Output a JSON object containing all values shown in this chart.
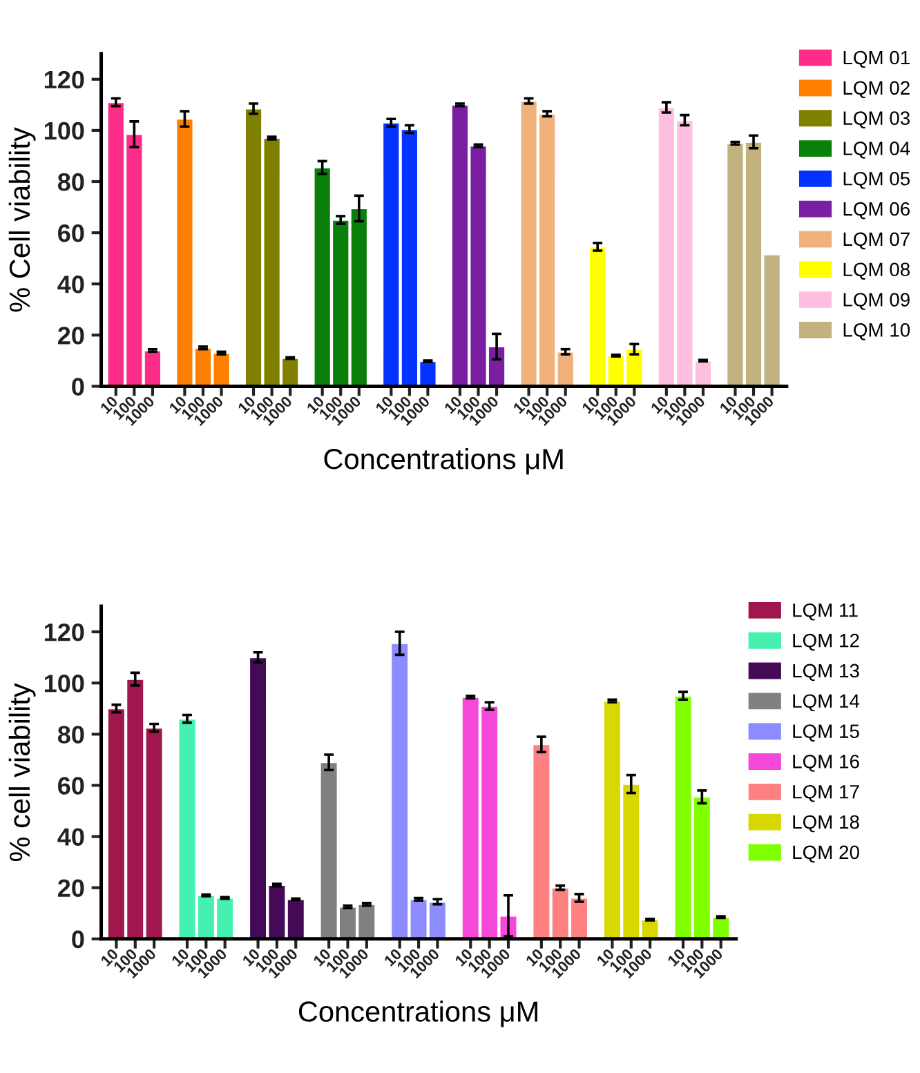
{
  "chart_data": [
    {
      "type": "bar",
      "xlabel": "Concentrations μM",
      "ylabel": "% Cell viability",
      "ylim": [
        0,
        130
      ],
      "yticks": [
        0,
        20,
        40,
        60,
        80,
        100,
        120
      ],
      "grid": false,
      "legend": "top right",
      "categories": [
        "10",
        "100",
        "1000",
        "10",
        "100",
        "1000",
        "10",
        "100",
        "1000",
        "10",
        "100",
        "1000",
        "10",
        "100",
        "1000",
        "10",
        "100",
        "1000",
        "10",
        "100",
        "1000",
        "10",
        "100",
        "1000",
        "10",
        "100",
        "1000",
        "10",
        "100",
        "1000"
      ],
      "series": [
        {
          "name": "LQM 01",
          "color": "#ff2d8a",
          "values": [
            111,
            98.5,
            14,
            null,
            null,
            null,
            null,
            null,
            null,
            null,
            null,
            null,
            null,
            null,
            null,
            null,
            null,
            null,
            null,
            null,
            null,
            null,
            null,
            null,
            null,
            null,
            null,
            null,
            null,
            null
          ],
          "errors": [
            1.5,
            5,
            0.5,
            null,
            null,
            null,
            null,
            null,
            null,
            null,
            null,
            null,
            null,
            null,
            null,
            null,
            null,
            null,
            null,
            null,
            null,
            null,
            null,
            null,
            null,
            null,
            null,
            null,
            null,
            null
          ]
        },
        {
          "name": "LQM 02",
          "color": "#ff8000",
          "values": [
            null,
            null,
            null,
            104.5,
            15,
            13,
            null,
            null,
            null,
            null,
            null,
            null,
            null,
            null,
            null,
            null,
            null,
            null,
            null,
            null,
            null,
            null,
            null,
            null,
            null,
            null,
            null,
            null,
            null,
            null
          ],
          "errors": [
            null,
            null,
            null,
            3,
            0.5,
            0.5,
            null,
            null,
            null,
            null,
            null,
            null,
            null,
            null,
            null,
            null,
            null,
            null,
            null,
            null,
            null,
            null,
            null,
            null,
            null,
            null,
            null,
            null,
            null,
            null
          ]
        },
        {
          "name": "LQM 03",
          "color": "#808000",
          "values": [
            null,
            null,
            null,
            null,
            null,
            null,
            108.5,
            97,
            11,
            null,
            null,
            null,
            null,
            null,
            null,
            null,
            null,
            null,
            null,
            null,
            null,
            null,
            null,
            null,
            null,
            null,
            null,
            null,
            null,
            null
          ],
          "errors": [
            null,
            null,
            null,
            null,
            null,
            null,
            2,
            0.5,
            0.3,
            null,
            null,
            null,
            null,
            null,
            null,
            null,
            null,
            null,
            null,
            null,
            null,
            null,
            null,
            null,
            null,
            null,
            null,
            null,
            null,
            null
          ]
        },
        {
          "name": "LQM 04",
          "color": "#0a800a",
          "values": [
            null,
            null,
            null,
            null,
            null,
            null,
            null,
            null,
            null,
            85.5,
            65,
            69.5,
            null,
            null,
            null,
            null,
            null,
            null,
            null,
            null,
            null,
            null,
            null,
            null,
            null,
            null,
            null,
            null,
            null,
            null
          ],
          "errors": [
            null,
            null,
            null,
            null,
            null,
            null,
            null,
            null,
            null,
            2.5,
            1.5,
            5,
            null,
            null,
            null,
            null,
            null,
            null,
            null,
            null,
            null,
            null,
            null,
            null,
            null,
            null,
            null,
            null,
            null,
            null
          ]
        },
        {
          "name": "LQM 05",
          "color": "#0433ff",
          "values": [
            null,
            null,
            null,
            null,
            null,
            null,
            null,
            null,
            null,
            null,
            null,
            null,
            103,
            100.5,
            9.8,
            null,
            null,
            null,
            null,
            null,
            null,
            null,
            null,
            null,
            null,
            null,
            null,
            null,
            null,
            null
          ],
          "errors": [
            null,
            null,
            null,
            null,
            null,
            null,
            null,
            null,
            null,
            null,
            null,
            null,
            1.5,
            1.5,
            0.3,
            null,
            null,
            null,
            null,
            null,
            null,
            null,
            null,
            null,
            null,
            null,
            null,
            null,
            null,
            null
          ]
        },
        {
          "name": "LQM 06",
          "color": "#7a1fa2",
          "values": [
            null,
            null,
            null,
            null,
            null,
            null,
            null,
            null,
            null,
            null,
            null,
            null,
            null,
            null,
            null,
            110,
            94,
            15.5,
            null,
            null,
            null,
            null,
            null,
            null,
            null,
            null,
            null,
            null,
            null,
            null
          ],
          "errors": [
            null,
            null,
            null,
            null,
            null,
            null,
            null,
            null,
            null,
            null,
            null,
            null,
            null,
            null,
            null,
            0.5,
            0.5,
            5,
            null,
            null,
            null,
            null,
            null,
            null,
            null,
            null,
            null,
            null,
            null,
            null
          ]
        },
        {
          "name": "LQM 07",
          "color": "#f0b27a",
          "values": [
            null,
            null,
            null,
            null,
            null,
            null,
            null,
            null,
            null,
            null,
            null,
            null,
            null,
            null,
            null,
            null,
            null,
            null,
            111.5,
            106.5,
            13.5,
            null,
            null,
            null,
            null,
            null,
            null,
            null,
            null,
            null
          ],
          "errors": [
            null,
            null,
            null,
            null,
            null,
            null,
            null,
            null,
            null,
            null,
            null,
            null,
            null,
            null,
            null,
            null,
            null,
            null,
            1,
            1,
            1,
            null,
            null,
            null,
            null,
            null,
            null,
            null,
            null,
            null
          ]
        },
        {
          "name": "LQM 08",
          "color": "#ffff00",
          "values": [
            null,
            null,
            null,
            null,
            null,
            null,
            null,
            null,
            null,
            null,
            null,
            null,
            null,
            null,
            null,
            null,
            null,
            null,
            null,
            null,
            null,
            54.5,
            12,
            14.5,
            null,
            null,
            null,
            null,
            null,
            null
          ],
          "errors": [
            null,
            null,
            null,
            null,
            null,
            null,
            null,
            null,
            null,
            null,
            null,
            null,
            null,
            null,
            null,
            null,
            null,
            null,
            null,
            null,
            null,
            1.5,
            0.3,
            2,
            null,
            null,
            null,
            null,
            null,
            null
          ]
        },
        {
          "name": "LQM 09",
          "color": "#ffc0e0",
          "values": [
            null,
            null,
            null,
            null,
            null,
            null,
            null,
            null,
            null,
            null,
            null,
            null,
            null,
            null,
            null,
            null,
            null,
            null,
            null,
            null,
            null,
            null,
            null,
            null,
            109,
            104,
            10,
            null,
            null,
            null
          ],
          "errors": [
            null,
            null,
            null,
            null,
            null,
            null,
            null,
            null,
            null,
            null,
            null,
            null,
            null,
            null,
            null,
            null,
            null,
            null,
            null,
            null,
            null,
            null,
            null,
            null,
            2,
            2,
            0.3,
            null,
            null,
            null
          ]
        },
        {
          "name": "LQM 10",
          "color": "#c2b280",
          "values": [
            null,
            null,
            null,
            null,
            null,
            null,
            null,
            null,
            null,
            null,
            null,
            null,
            null,
            null,
            null,
            null,
            null,
            null,
            null,
            null,
            null,
            null,
            null,
            null,
            null,
            null,
            null,
            95,
            95.5,
            51.5
          ],
          "errors": [
            null,
            null,
            null,
            null,
            null,
            null,
            null,
            null,
            null,
            null,
            null,
            null,
            null,
            null,
            null,
            null,
            null,
            null,
            null,
            null,
            null,
            null,
            null,
            null,
            null,
            null,
            null,
            0.5,
            2.5,
            null
          ]
        }
      ]
    },
    {
      "type": "bar",
      "xlabel": "Concentrations μM",
      "ylabel": "% cell viability",
      "ylim": [
        0,
        130
      ],
      "yticks": [
        0,
        20,
        40,
        60,
        80,
        100,
        120
      ],
      "grid": false,
      "legend": "top right",
      "categories": [
        "10",
        "100",
        "1000",
        "10",
        "100",
        "1000",
        "10",
        "100",
        "1000",
        "10",
        "100",
        "1000",
        "10",
        "100",
        "1000",
        "10",
        "100",
        "1000",
        "10",
        "100",
        "1000",
        "10",
        "100",
        "1000",
        "10",
        "100",
        "1000"
      ],
      "series": [
        {
          "name": "LQM 11",
          "color": "#a0174d",
          "values": [
            90,
            101.5,
            82.5,
            null,
            null,
            null,
            null,
            null,
            null,
            null,
            null,
            null,
            null,
            null,
            null,
            null,
            null,
            null,
            null,
            null,
            null,
            null,
            null,
            null,
            null,
            null,
            null
          ],
          "errors": [
            1.5,
            2.5,
            1.5,
            null,
            null,
            null,
            null,
            null,
            null,
            null,
            null,
            null,
            null,
            null,
            null,
            null,
            null,
            null,
            null,
            null,
            null,
            null,
            null,
            null,
            null,
            null,
            null
          ]
        },
        {
          "name": "LQM 12",
          "color": "#45f0b0",
          "values": [
            null,
            null,
            null,
            86,
            17,
            16,
            null,
            null,
            null,
            null,
            null,
            null,
            null,
            null,
            null,
            null,
            null,
            null,
            null,
            null,
            null,
            null,
            null,
            null,
            null,
            null,
            null
          ],
          "errors": [
            null,
            null,
            null,
            1.5,
            0.3,
            0.3,
            null,
            null,
            null,
            null,
            null,
            null,
            null,
            null,
            null,
            null,
            null,
            null,
            null,
            null,
            null,
            null,
            null,
            null,
            null,
            null,
            null
          ]
        },
        {
          "name": "LQM 13",
          "color": "#440a55",
          "values": [
            null,
            null,
            null,
            null,
            null,
            null,
            110,
            21,
            15.5,
            null,
            null,
            null,
            null,
            null,
            null,
            null,
            null,
            null,
            null,
            null,
            null,
            null,
            null,
            null,
            null,
            null,
            null
          ],
          "errors": [
            null,
            null,
            null,
            null,
            null,
            null,
            2,
            0.5,
            0.3,
            null,
            null,
            null,
            null,
            null,
            null,
            null,
            null,
            null,
            null,
            null,
            null,
            null,
            null,
            null,
            null,
            null,
            null
          ]
        },
        {
          "name": "LQM 14",
          "color": "#808080",
          "values": [
            null,
            null,
            null,
            null,
            null,
            null,
            null,
            null,
            null,
            69,
            12.5,
            13.5,
            null,
            null,
            null,
            null,
            null,
            null,
            null,
            null,
            null,
            null,
            null,
            null,
            null,
            null,
            null
          ],
          "errors": [
            null,
            null,
            null,
            null,
            null,
            null,
            null,
            null,
            null,
            3,
            0.5,
            0.5,
            null,
            null,
            null,
            null,
            null,
            null,
            null,
            null,
            null,
            null,
            null,
            null,
            null,
            null,
            null
          ]
        },
        {
          "name": "LQM 15",
          "color": "#8c8cff",
          "values": [
            null,
            null,
            null,
            null,
            null,
            null,
            null,
            null,
            null,
            null,
            null,
            null,
            115.5,
            15.5,
            14.5,
            null,
            null,
            null,
            null,
            null,
            null,
            null,
            null,
            null,
            null,
            null,
            null
          ],
          "errors": [
            null,
            null,
            null,
            null,
            null,
            null,
            null,
            null,
            null,
            null,
            null,
            null,
            4.5,
            0.5,
            1,
            null,
            null,
            null,
            null,
            null,
            null,
            null,
            null,
            null,
            null,
            null,
            null
          ]
        },
        {
          "name": "LQM 16",
          "color": "#f548d8",
          "values": [
            null,
            null,
            null,
            null,
            null,
            null,
            null,
            null,
            null,
            null,
            null,
            null,
            null,
            null,
            null,
            94.5,
            91,
            9,
            null,
            null,
            null,
            null,
            null,
            null,
            null,
            null,
            null
          ],
          "errors": [
            null,
            null,
            null,
            null,
            null,
            null,
            null,
            null,
            null,
            null,
            null,
            null,
            null,
            null,
            null,
            0.5,
            1.5,
            8,
            null,
            null,
            null,
            null,
            null,
            null,
            null,
            null,
            null
          ]
        },
        {
          "name": "LQM 17",
          "color": "#ff8080",
          "values": [
            null,
            null,
            null,
            null,
            null,
            null,
            null,
            null,
            null,
            null,
            null,
            null,
            null,
            null,
            null,
            null,
            null,
            null,
            76,
            20,
            16,
            null,
            null,
            null,
            null,
            null,
            null
          ],
          "errors": [
            null,
            null,
            null,
            null,
            null,
            null,
            null,
            null,
            null,
            null,
            null,
            null,
            null,
            null,
            null,
            null,
            null,
            null,
            3,
            0.8,
            1.5,
            null,
            null,
            null,
            null,
            null,
            null
          ]
        },
        {
          "name": "LQM 18",
          "color": "#d8d800",
          "values": [
            null,
            null,
            null,
            null,
            null,
            null,
            null,
            null,
            null,
            null,
            null,
            null,
            null,
            null,
            null,
            null,
            null,
            null,
            null,
            null,
            null,
            93,
            60.5,
            7.5,
            null,
            null,
            null
          ],
          "errors": [
            null,
            null,
            null,
            null,
            null,
            null,
            null,
            null,
            null,
            null,
            null,
            null,
            null,
            null,
            null,
            null,
            null,
            null,
            null,
            null,
            null,
            0.5,
            3.5,
            0.3,
            null,
            null,
            null
          ]
        },
        {
          "name": "LQM 20",
          "color": "#80ff00",
          "values": [
            null,
            null,
            null,
            null,
            null,
            null,
            null,
            null,
            null,
            null,
            null,
            null,
            null,
            null,
            null,
            null,
            null,
            null,
            null,
            null,
            null,
            null,
            null,
            null,
            95,
            55.5,
            8.5
          ],
          "errors": [
            null,
            null,
            null,
            null,
            null,
            null,
            null,
            null,
            null,
            null,
            null,
            null,
            null,
            null,
            null,
            null,
            null,
            null,
            null,
            null,
            null,
            null,
            null,
            null,
            1.5,
            2.5,
            0.3
          ]
        }
      ]
    }
  ]
}
